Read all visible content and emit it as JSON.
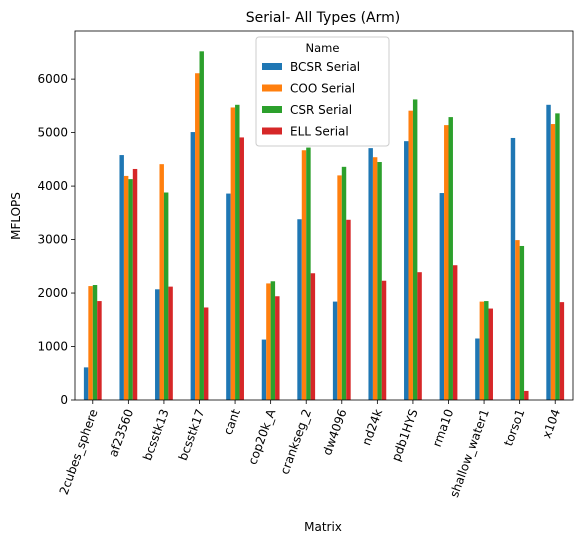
{
  "chart_data": {
    "type": "bar",
    "title": "Serial- All Types (Arm)",
    "xlabel": "Matrix",
    "ylabel": "MFLOPS",
    "ylim": [
      0,
      6900
    ],
    "yticks": [
      0,
      1000,
      2000,
      3000,
      4000,
      5000,
      6000
    ],
    "grid": false,
    "legend": {
      "title": "Name",
      "placement": "top-center"
    },
    "categories": [
      "2cubes_sphere",
      "af23560",
      "bcsstk13",
      "bcsstk17",
      "cant",
      "cop20k_A",
      "crankseg_2",
      "dw4096",
      "nd24k",
      "pdb1HYS",
      "rma10",
      "shallow_water1",
      "torso1",
      "x104"
    ],
    "series": [
      {
        "name": "BCSR Serial",
        "color": "#1f77b4",
        "values": [
          610,
          4580,
          2070,
          5010,
          3860,
          1130,
          3380,
          1840,
          4710,
          4840,
          3870,
          1150,
          4900,
          5520
        ]
      },
      {
        "name": "COO Serial",
        "color": "#ff7f0e",
        "values": [
          2130,
          4190,
          4410,
          6110,
          5470,
          2180,
          4670,
          4200,
          4540,
          5410,
          5140,
          1840,
          2990,
          5160
        ]
      },
      {
        "name": "CSR Serial",
        "color": "#2ca02c",
        "values": [
          2150,
          4130,
          3880,
          6520,
          5520,
          2220,
          4720,
          4360,
          4450,
          5620,
          5290,
          1850,
          2880,
          5360
        ]
      },
      {
        "name": "ELL Serial",
        "color": "#d62728",
        "values": [
          1850,
          4320,
          2120,
          1730,
          4910,
          1940,
          2370,
          3370,
          2230,
          2390,
          2520,
          1710,
          170,
          1830
        ]
      }
    ]
  }
}
